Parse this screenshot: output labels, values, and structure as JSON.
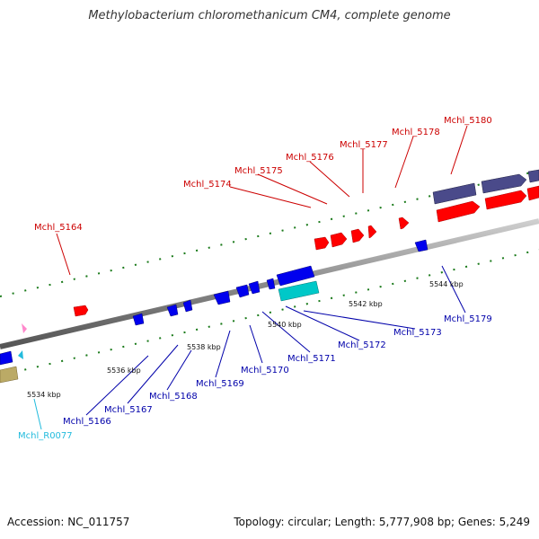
{
  "title": "Methylobacterium chloromethanicum CM4, complete genome",
  "footer": {
    "accession": "Accession: NC_011757",
    "topology": "Topology: circular; Length: 5,777,908 bp; Genes: 5,249"
  },
  "colors": {
    "top_label": "#cc0000",
    "bottom_label": "#0000aa",
    "rna_label": "#22bbdd",
    "backbone": "#888888",
    "tick_mark": "#1a7a1a"
  },
  "kbp_ticks": [
    "5534 kbp",
    "5536 kbp",
    "5538 kbp",
    "5540 kbp",
    "5542 kbp",
    "5544 kbp"
  ],
  "top_genes": [
    "Mchl_5164",
    "Mchl_5174",
    "Mchl_5175",
    "Mchl_5176",
    "Mchl_5177",
    "Mchl_5178",
    "Mchl_5180"
  ],
  "bottom_genes": [
    "Mchl_5166",
    "Mchl_5167",
    "Mchl_5168",
    "Mchl_5169",
    "Mchl_5170",
    "Mchl_5171",
    "Mchl_5172",
    "Mchl_5173",
    "Mchl_5179"
  ],
  "rna_genes": [
    "Mchl_R0077"
  ]
}
